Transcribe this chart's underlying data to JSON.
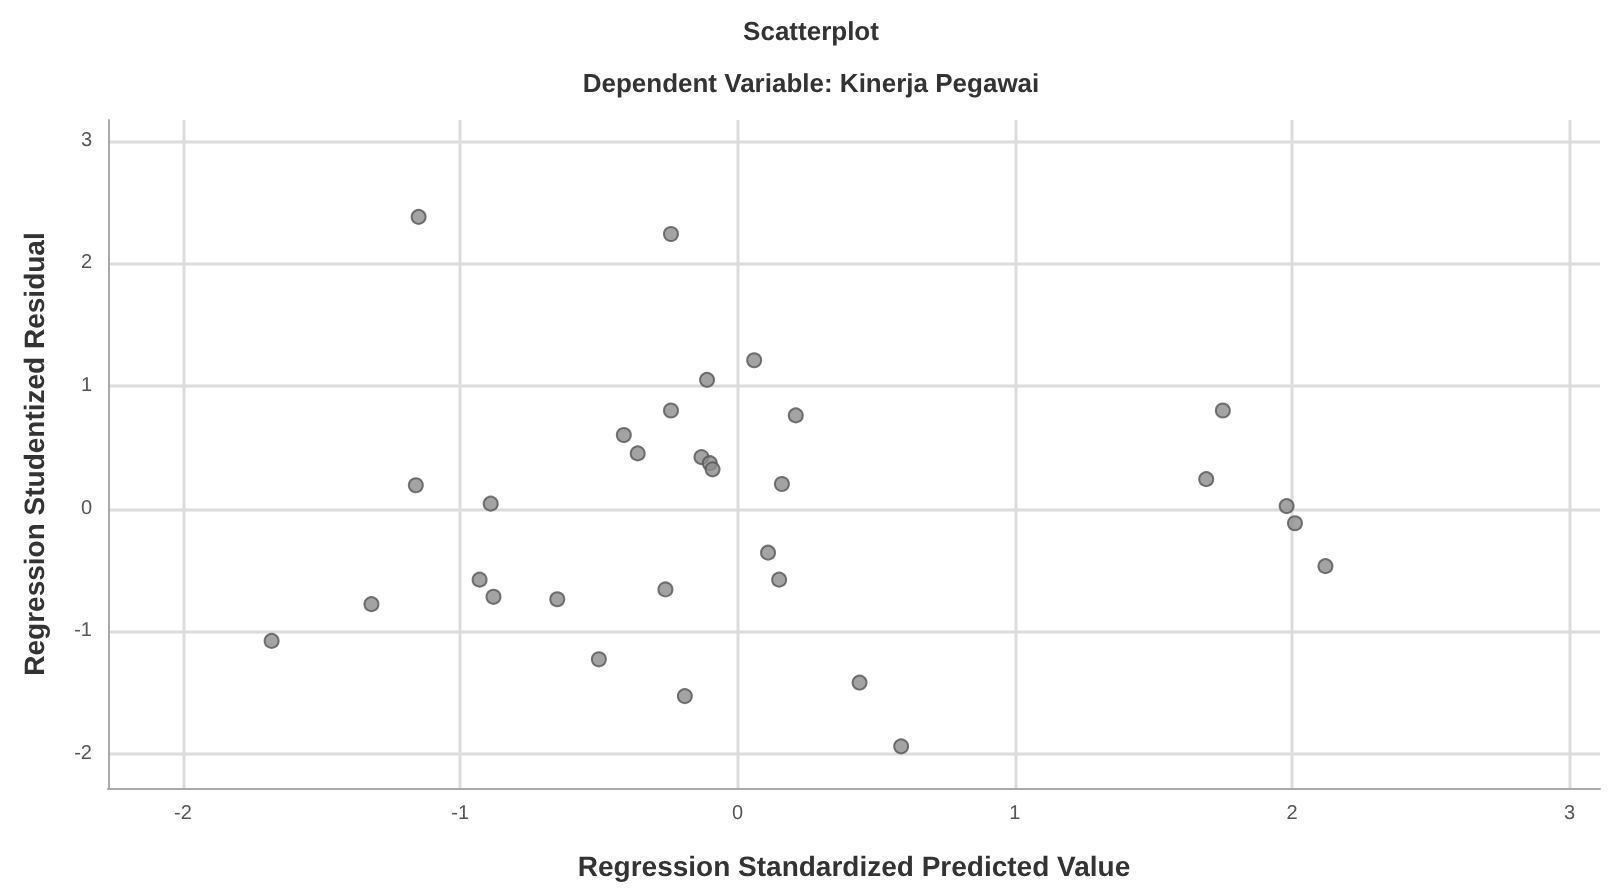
{
  "chart_data": {
    "type": "scatter",
    "title": "Scatterplot",
    "subtitle": "Dependent Variable: Kinerja Pegawai",
    "xlabel": "Regression Standardized Predicted Value",
    "ylabel": "Regression Studentized Residual",
    "x": [
      -1.15,
      -0.24,
      0.06,
      -0.11,
      -0.24,
      0.21,
      -0.41,
      -0.36,
      -0.13,
      -0.1,
      -0.09,
      -1.16,
      0.16,
      -0.89,
      1.75,
      1.69,
      1.98,
      2.01,
      2.12,
      0.44,
      0.59,
      -1.68,
      -1.32,
      -0.93,
      -0.88,
      -0.65,
      -0.5,
      -0.26,
      -0.19,
      0.11,
      0.15
    ],
    "values": [
      2.38,
      2.24,
      1.21,
      1.05,
      0.8,
      0.76,
      0.6,
      0.45,
      0.42,
      0.37,
      0.32,
      0.19,
      0.2,
      0.04,
      0.8,
      0.24,
      0.02,
      -0.12,
      -0.47,
      -1.42,
      -1.94,
      -1.08,
      -0.78,
      -0.58,
      -0.72,
      -0.74,
      -1.23,
      -0.66,
      -1.53,
      -0.36,
      -0.58
    ],
    "color": "#8c8c8c",
    "marker": "circle",
    "xlim": [
      -2.27,
      3.11
    ],
    "xticks": [
      -2,
      -1,
      0,
      1,
      2,
      3
    ],
    "ylim": [
      -2.28,
      3.17
    ],
    "yticks": [
      -2,
      -1,
      0,
      1,
      2,
      3
    ],
    "grid": true
  }
}
